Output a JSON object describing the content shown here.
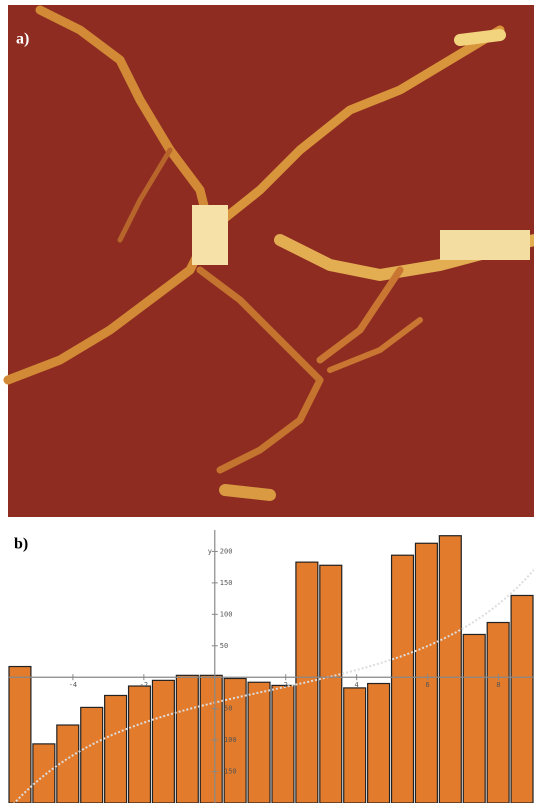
{
  "panel_a": {
    "label": "a)"
  },
  "chart_data": {
    "type": "bar",
    "label": "b)",
    "y_label": "y",
    "categories": [
      null,
      null,
      null,
      null,
      null,
      null,
      null,
      null,
      null,
      null,
      null,
      null,
      null,
      null,
      null,
      null,
      null,
      null,
      null,
      null,
      null,
      null
    ],
    "values": [
      17,
      -106,
      -76,
      -48,
      -29,
      -14,
      -5,
      3,
      3,
      -2,
      -8,
      -13,
      183,
      178,
      -17,
      -10,
      194,
      213,
      225,
      68,
      87,
      130
    ],
    "color": "#e27b2c",
    "ylim": [
      -200,
      250
    ],
    "yticks": [
      -150,
      -100,
      -50,
      50,
      100,
      150,
      200
    ],
    "xlim": [
      -5.83,
      9
    ],
    "xticks": [
      -4,
      -2,
      2,
      4,
      6,
      8
    ]
  }
}
